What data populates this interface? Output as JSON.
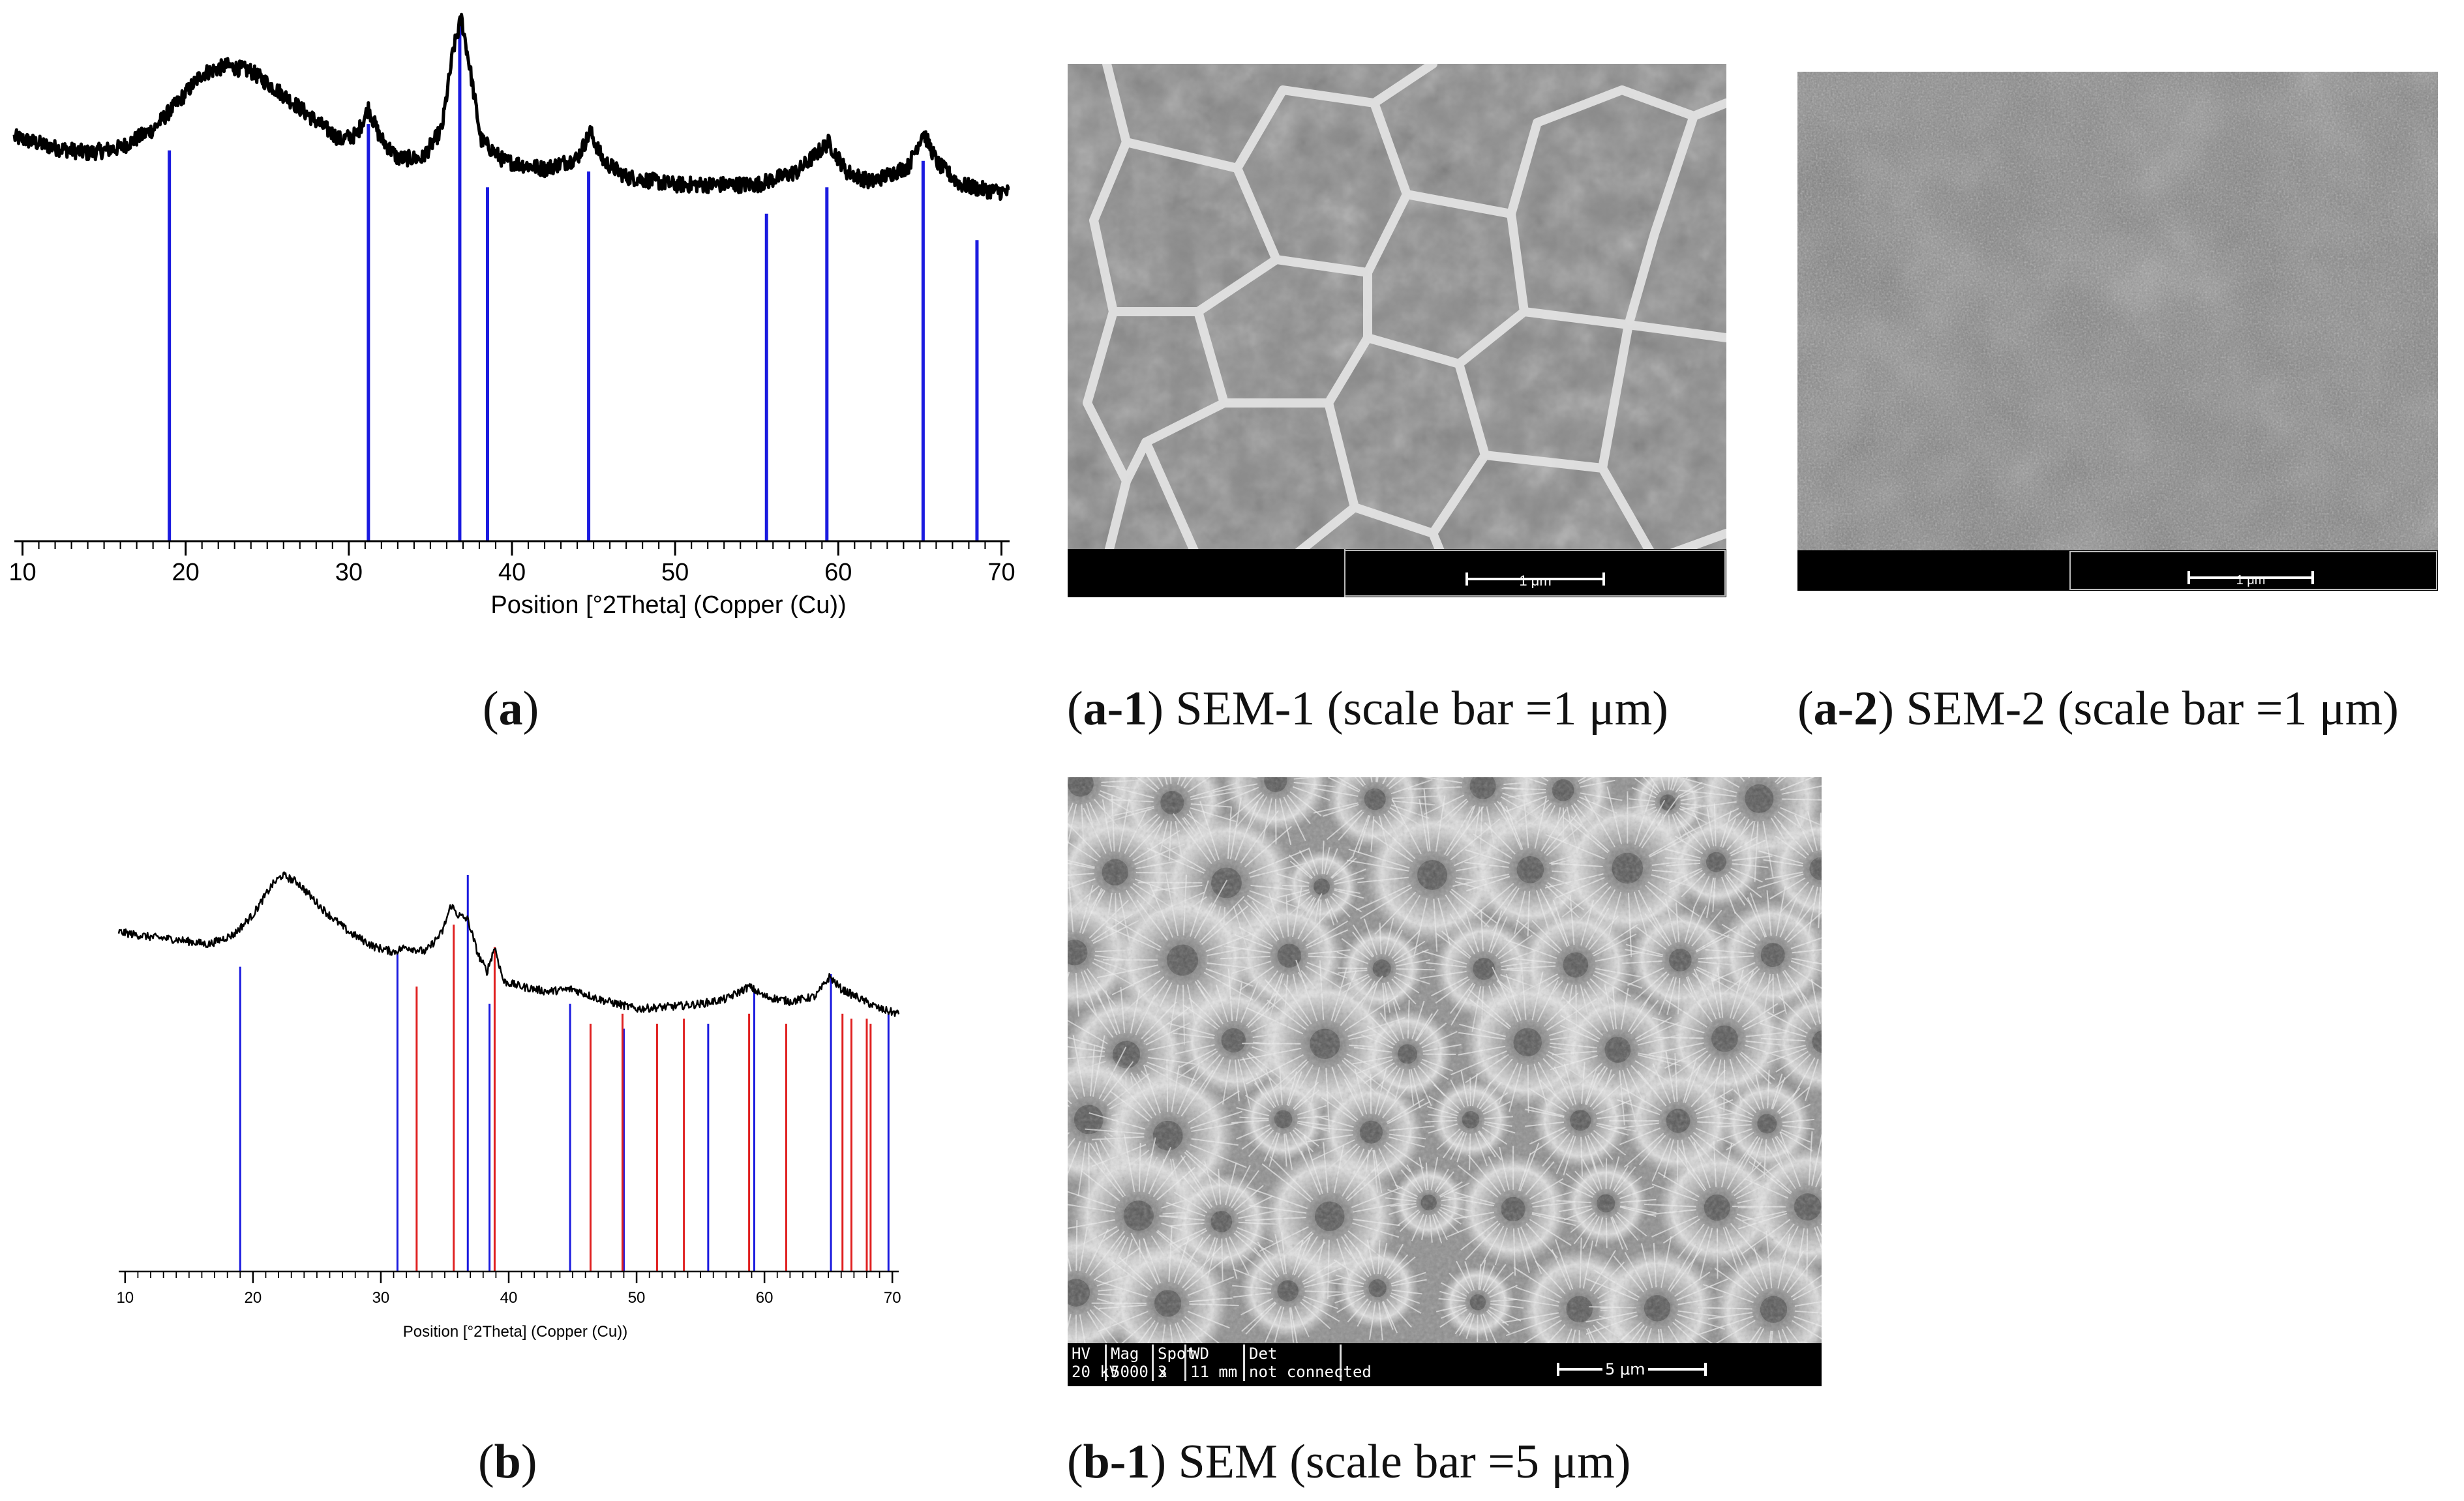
{
  "chart_data": [
    {
      "id": "a",
      "type": "line",
      "xlabel": "Position [°2Theta] (Copper (Cu))",
      "xlim": [
        9.5,
        70.5
      ],
      "xticks": [
        10,
        20,
        30,
        40,
        50,
        60,
        70
      ],
      "grid": false,
      "pattern_points": [
        [
          9.5,
          0.765
        ],
        [
          12,
          0.745
        ],
        [
          14,
          0.735
        ],
        [
          16,
          0.745
        ],
        [
          18,
          0.78
        ],
        [
          19.5,
          0.83
        ],
        [
          21,
          0.885
        ],
        [
          22.5,
          0.9
        ],
        [
          24,
          0.89
        ],
        [
          26,
          0.845
        ],
        [
          28,
          0.795
        ],
        [
          29.5,
          0.76
        ],
        [
          30.5,
          0.77
        ],
        [
          31.2,
          0.82
        ],
        [
          31.9,
          0.765
        ],
        [
          33,
          0.725
        ],
        [
          34.5,
          0.725
        ],
        [
          35.7,
          0.78
        ],
        [
          36.4,
          0.93
        ],
        [
          36.9,
          0.99
        ],
        [
          37.4,
          0.9
        ],
        [
          38.1,
          0.76
        ],
        [
          39.5,
          0.72
        ],
        [
          42,
          0.705
        ],
        [
          44,
          0.725
        ],
        [
          44.8,
          0.775
        ],
        [
          45.6,
          0.72
        ],
        [
          47,
          0.69
        ],
        [
          50,
          0.675
        ],
        [
          53,
          0.675
        ],
        [
          55,
          0.675
        ],
        [
          57.5,
          0.7
        ],
        [
          59.4,
          0.755
        ],
        [
          60.5,
          0.7
        ],
        [
          62,
          0.68
        ],
        [
          64.3,
          0.71
        ],
        [
          65.2,
          0.775
        ],
        [
          66.1,
          0.715
        ],
        [
          67.5,
          0.675
        ],
        [
          69,
          0.665
        ],
        [
          70.5,
          0.66
        ]
      ],
      "reference_lines": [
        {
          "x": 19.0,
          "h": 0.74
        },
        {
          "x": 31.2,
          "h": 0.79
        },
        {
          "x": 36.8,
          "h": 0.99
        },
        {
          "x": 38.5,
          "h": 0.67
        },
        {
          "x": 44.7,
          "h": 0.7
        },
        {
          "x": 55.6,
          "h": 0.62
        },
        {
          "x": 59.3,
          "h": 0.67
        },
        {
          "x": 65.2,
          "h": 0.72
        },
        {
          "x": 68.5,
          "h": 0.57
        }
      ],
      "reference_color": "#1a1adf",
      "pattern_color": "#000000"
    },
    {
      "id": "b",
      "type": "line",
      "xlabel": "Position [°2Theta] (Copper (Cu))",
      "xlim": [
        9.5,
        70.5
      ],
      "xticks": [
        10,
        20,
        30,
        40,
        50,
        60,
        70
      ],
      "grid": false,
      "pattern_points": [
        [
          9.5,
          0.685
        ],
        [
          12,
          0.675
        ],
        [
          14,
          0.67
        ],
        [
          16.5,
          0.66
        ],
        [
          18.5,
          0.68
        ],
        [
          20,
          0.72
        ],
        [
          21.5,
          0.78
        ],
        [
          22.3,
          0.8
        ],
        [
          23.5,
          0.785
        ],
        [
          25.5,
          0.73
        ],
        [
          27.5,
          0.685
        ],
        [
          29.5,
          0.655
        ],
        [
          31,
          0.645
        ],
        [
          32,
          0.655
        ],
        [
          33.5,
          0.645
        ],
        [
          34.8,
          0.685
        ],
        [
          35.5,
          0.74
        ],
        [
          36,
          0.72
        ],
        [
          36.8,
          0.71
        ],
        [
          37.6,
          0.64
        ],
        [
          38.3,
          0.605
        ],
        [
          38.9,
          0.655
        ],
        [
          39.6,
          0.585
        ],
        [
          41,
          0.575
        ],
        [
          43,
          0.565
        ],
        [
          45,
          0.57
        ],
        [
          47,
          0.55
        ],
        [
          50,
          0.53
        ],
        [
          53,
          0.535
        ],
        [
          55,
          0.54
        ],
        [
          57,
          0.55
        ],
        [
          58.8,
          0.575
        ],
        [
          60,
          0.555
        ],
        [
          62,
          0.545
        ],
        [
          64,
          0.555
        ],
        [
          65.1,
          0.595
        ],
        [
          66,
          0.57
        ],
        [
          67.5,
          0.55
        ],
        [
          69,
          0.53
        ],
        [
          70.5,
          0.52
        ]
      ],
      "reference_groups": [
        {
          "color": "#1a1adf",
          "lines": [
            {
              "x": 19.0,
              "h": 0.615
            },
            {
              "x": 31.3,
              "h": 0.645
            },
            {
              "x": 36.8,
              "h": 0.8
            },
            {
              "x": 38.5,
              "h": 0.54
            },
            {
              "x": 44.8,
              "h": 0.54
            },
            {
              "x": 49.0,
              "h": 0.49
            },
            {
              "x": 55.6,
              "h": 0.5
            },
            {
              "x": 59.2,
              "h": 0.57
            },
            {
              "x": 65.2,
              "h": 0.6
            },
            {
              "x": 69.7,
              "h": 0.52
            }
          ]
        },
        {
          "color": "#e02020",
          "lines": [
            {
              "x": 32.8,
              "h": 0.575
            },
            {
              "x": 35.7,
              "h": 0.7
            },
            {
              "x": 38.9,
              "h": 0.655
            },
            {
              "x": 46.4,
              "h": 0.5
            },
            {
              "x": 48.9,
              "h": 0.52
            },
            {
              "x": 51.6,
              "h": 0.5
            },
            {
              "x": 53.7,
              "h": 0.51
            },
            {
              "x": 58.8,
              "h": 0.52
            },
            {
              "x": 61.7,
              "h": 0.5
            },
            {
              "x": 66.1,
              "h": 0.52
            },
            {
              "x": 66.8,
              "h": 0.51
            },
            {
              "x": 68.0,
              "h": 0.51
            },
            {
              "x": 68.3,
              "h": 0.5
            }
          ]
        }
      ]
    }
  ],
  "captions": {
    "a": {
      "letter": "a",
      "text": ""
    },
    "a1": {
      "letter": "a-1",
      "text": " SEM-1 (scale bar =1 μm)"
    },
    "a2": {
      "letter": "a-2",
      "text": " SEM-2 (scale bar =1 μm)"
    },
    "b": {
      "letter": "b",
      "text": ""
    },
    "b1": {
      "letter": "b-1",
      "text": " SEM (scale bar =5 μm)"
    }
  },
  "sem": {
    "b1": {
      "hv_label": "HV",
      "hv_value": "20 kV",
      "mag_label": "Mag",
      "mag_value": "5000 x",
      "spot_label": "Spot",
      "spot_value": "3",
      "wd_label": "WD",
      "wd_value": "11 mm",
      "det_label": "Det",
      "det_value": "not connected",
      "scale_label": "5 μm"
    },
    "a1": {
      "scale_label": "1 μm"
    },
    "a2": {
      "scale_label": "1 μm"
    }
  }
}
